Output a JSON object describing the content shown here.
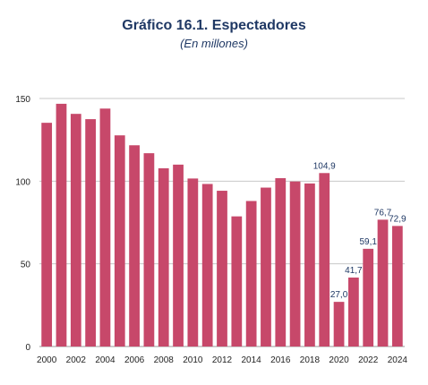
{
  "chart_data": {
    "type": "bar",
    "title": "Gráfico 16.1. Espectadores",
    "subtitle": "(En millones)",
    "xlabel": "",
    "ylabel": "",
    "ylim": [
      0,
      150
    ],
    "yticks": [
      0,
      50,
      100,
      150
    ],
    "grid": true,
    "bar_color": "#c7486a",
    "categories": [
      "2000",
      "2001",
      "2002",
      "2003",
      "2004",
      "2005",
      "2006",
      "2007",
      "2008",
      "2009",
      "2010",
      "2011",
      "2012",
      "2013",
      "2014",
      "2015",
      "2016",
      "2017",
      "2018",
      "2019",
      "2020",
      "2021",
      "2022",
      "2023",
      "2024"
    ],
    "x_tick_labels": [
      "2000",
      "2002",
      "2004",
      "2006",
      "2008",
      "2010",
      "2012",
      "2014",
      "2016",
      "2018",
      "2020",
      "2022",
      "2024"
    ],
    "values": [
      135.3,
      146.8,
      140.7,
      137.5,
      143.9,
      127.7,
      121.7,
      116.9,
      107.8,
      110.0,
      101.6,
      98.3,
      94.2,
      78.7,
      88.0,
      96.1,
      101.8,
      99.8,
      98.6,
      104.9,
      27.0,
      41.7,
      59.1,
      76.7,
      72.9
    ],
    "data_labels": {
      "19": "104,9",
      "20": "27,0",
      "21": "41,7",
      "22": "59,1",
      "23": "76,7",
      "24": "72,9"
    }
  }
}
